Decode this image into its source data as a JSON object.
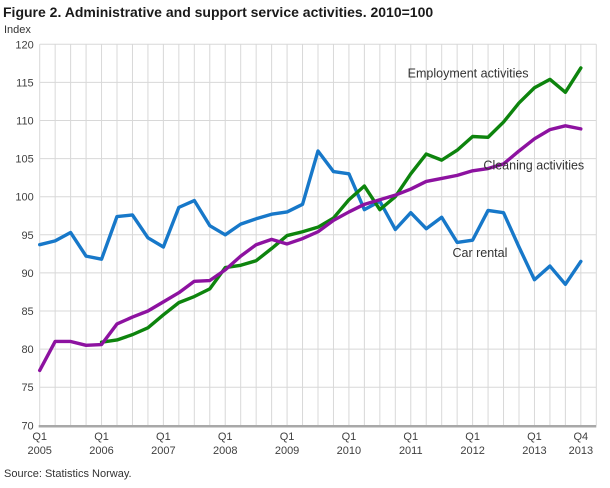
{
  "header": {
    "title": "Figure 2. Administrative and support service activities. 2010=100",
    "y_axis_unit_label": "Index"
  },
  "footer": {
    "source": "Source: Statistics Norway."
  },
  "chart_data": {
    "type": "line",
    "title": "Figure 2. Administrative and support service activities. 2010=100",
    "ylabel": "Index",
    "ylim": [
      70,
      120
    ],
    "y_ticks": [
      70,
      75,
      80,
      85,
      90,
      95,
      100,
      105,
      110,
      115,
      120
    ],
    "grid": true,
    "legend_position": "inline-annotations",
    "colors": {
      "car_rental": "#1778c9",
      "employment": "#0d840d",
      "cleaning": "#8d12a0",
      "gridline": "#d8d8d8",
      "axis_line": "#a8a8a8",
      "tick_text": "#404040",
      "annotation_text": "#333333"
    },
    "categories": [
      "Q1 2005",
      "Q2 2005",
      "Q3 2005",
      "Q4 2005",
      "Q1 2006",
      "Q2 2006",
      "Q3 2006",
      "Q4 2006",
      "Q1 2007",
      "Q2 2007",
      "Q3 2007",
      "Q4 2007",
      "Q1 2008",
      "Q2 2008",
      "Q3 2008",
      "Q4 2008",
      "Q1 2009",
      "Q2 2009",
      "Q3 2009",
      "Q4 2009",
      "Q1 2010",
      "Q2 2010",
      "Q3 2010",
      "Q4 2010",
      "Q1 2011",
      "Q2 2011",
      "Q3 2011",
      "Q4 2011",
      "Q1 2012",
      "Q2 2012",
      "Q3 2012",
      "Q4 2012",
      "Q1 2013",
      "Q2 2013",
      "Q3 2013",
      "Q4 2013"
    ],
    "x_tick_labels": [
      {
        "index": 0,
        "line1": "Q1",
        "line2": "2005"
      },
      {
        "index": 4,
        "line1": "Q1",
        "line2": "2006"
      },
      {
        "index": 8,
        "line1": "Q1",
        "line2": "2007"
      },
      {
        "index": 12,
        "line1": "Q1",
        "line2": "2008"
      },
      {
        "index": 16,
        "line1": "Q1",
        "line2": "2009"
      },
      {
        "index": 20,
        "line1": "Q1",
        "line2": "2010"
      },
      {
        "index": 24,
        "line1": "Q1",
        "line2": "2011"
      },
      {
        "index": 28,
        "line1": "Q1",
        "line2": "2012"
      },
      {
        "index": 32,
        "line1": "Q1",
        "line2": "2013"
      },
      {
        "index": 35,
        "line1": "Q4",
        "line2": "2013"
      }
    ],
    "series": [
      {
        "name": "Car rental",
        "color_key": "car_rental",
        "values": [
          93.7,
          94.2,
          95.3,
          92.2,
          91.8,
          97.4,
          97.6,
          94.6,
          93.4,
          98.6,
          99.5,
          96.2,
          95.0,
          96.4,
          97.1,
          97.7,
          98.0,
          99.0,
          106.0,
          103.3,
          103.0,
          98.3,
          99.4,
          95.7,
          97.9,
          95.8,
          97.3,
          94.0,
          94.3,
          98.2,
          97.9,
          93.4,
          89.1,
          90.9,
          88.5,
          91.5
        ]
      },
      {
        "name": "Employment activities",
        "color_key": "employment",
        "values": [
          null,
          null,
          null,
          null,
          80.9,
          81.2,
          81.9,
          82.8,
          84.5,
          86.1,
          86.9,
          87.9,
          90.7,
          91.0,
          91.6,
          93.2,
          94.9,
          95.4,
          96.0,
          97.2,
          99.6,
          101.4,
          98.3,
          100.0,
          103.0,
          105.6,
          104.8,
          106.1,
          107.9,
          107.8,
          109.8,
          112.3,
          114.3,
          115.4,
          113.7,
          116.9
        ]
      },
      {
        "name": "Cleaning activities",
        "color_key": "cleaning",
        "values": [
          77.2,
          81.0,
          81.0,
          80.5,
          80.6,
          83.3,
          84.2,
          85.0,
          86.2,
          87.4,
          88.9,
          89.0,
          90.4,
          92.2,
          93.7,
          94.4,
          93.8,
          94.5,
          95.4,
          96.9,
          98.0,
          99.0,
          99.6,
          100.2,
          101.0,
          102.0,
          102.4,
          102.8,
          103.4,
          103.7,
          104.3,
          106.0,
          107.6,
          108.8,
          109.3,
          108.9
        ]
      }
    ],
    "annotations": [
      {
        "text": "Employment activities",
        "x": 23.8,
        "y": 116.2,
        "series": "Employment activities"
      },
      {
        "text": "Cleaning activities",
        "x": 28.7,
        "y": 104.1,
        "series": "Cleaning activities"
      },
      {
        "text": "Car rental",
        "x": 26.7,
        "y": 92.6,
        "series": "Car rental"
      }
    ]
  }
}
